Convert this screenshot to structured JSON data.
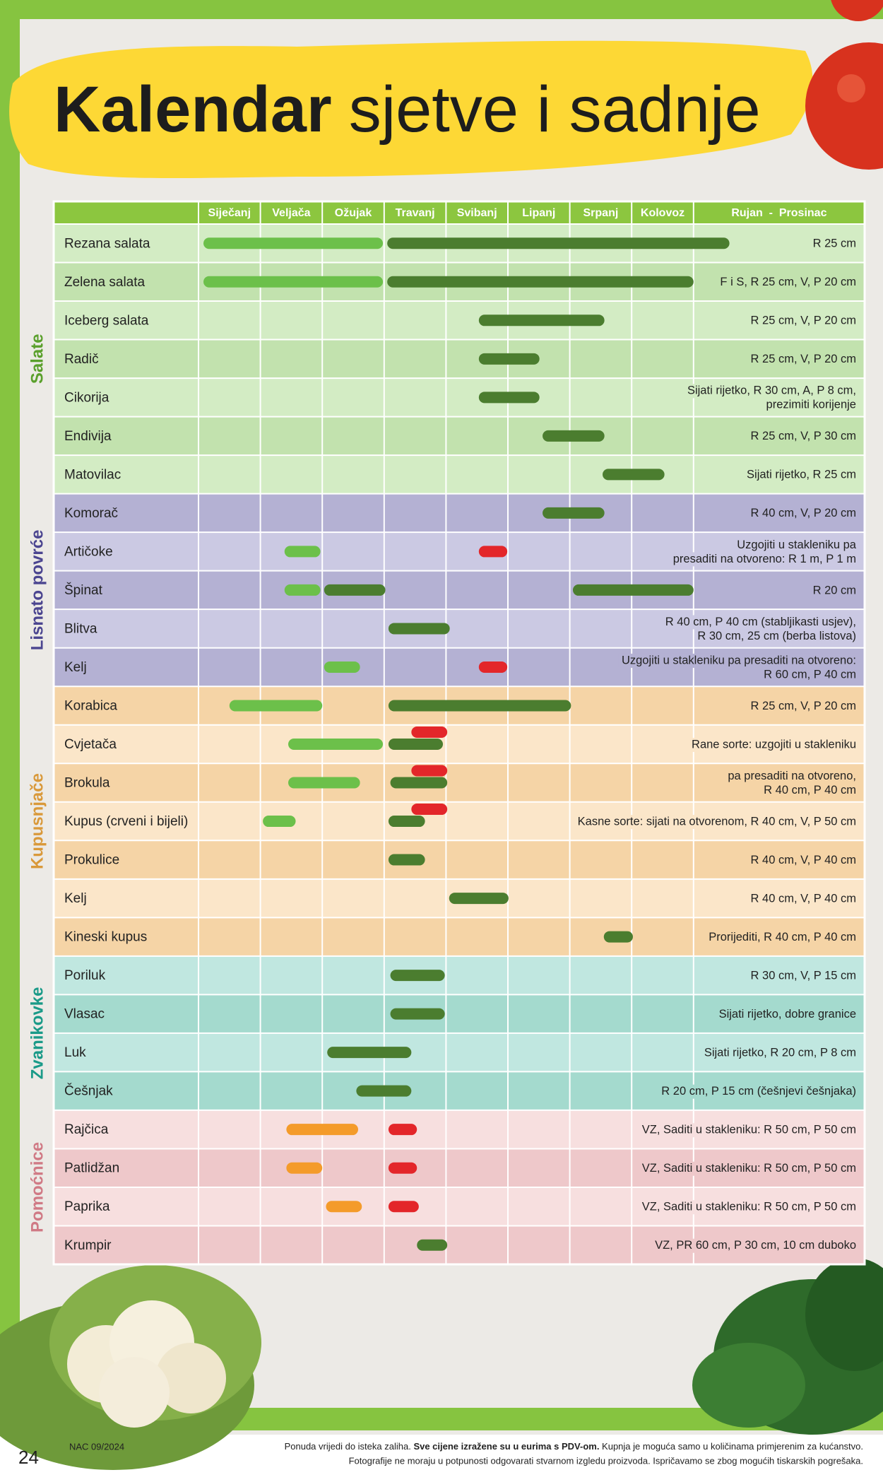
{
  "header": {
    "title_bold": "Kalendar",
    "title_rest": "sjetve i sadnje"
  },
  "months": [
    "Siječanj",
    "Veljača",
    "Ožujak",
    "Travanj",
    "Svibanj",
    "Lipanj",
    "Srpanj",
    "Kolovoz"
  ],
  "notes_header": "Rujan  -  Prosinac",
  "groups": [
    {
      "name": "Salate",
      "color": "#5aa02c",
      "bg": [
        "#d3ecc4",
        "#c2e2ae"
      ],
      "rows": [
        {
          "name": "Rezana salata",
          "note": [
            "R 25 cm"
          ],
          "bars": [
            {
              "start": 0.08,
              "end": 2.98,
              "color": "#6cc04a"
            },
            {
              "start": 3.05,
              "end": 8.58,
              "color": "#4b7d2f"
            }
          ]
        },
        {
          "name": "Zelena salata",
          "note": [
            "F i S, R 25 cm, V, P 20 cm"
          ],
          "bars": [
            {
              "start": 0.08,
              "end": 2.98,
              "color": "#6cc04a"
            },
            {
              "start": 3.05,
              "end": 8.0,
              "color": "#4b7d2f"
            }
          ]
        },
        {
          "name": "Iceberg salata",
          "note": [
            "R 25 cm, V, P 20 cm"
          ],
          "bars": [
            {
              "start": 4.53,
              "end": 6.56,
              "color": "#4b7d2f"
            }
          ]
        },
        {
          "name": "Radič",
          "note": [
            "R 25 cm, V, P 20 cm"
          ],
          "bars": [
            {
              "start": 4.53,
              "end": 5.51,
              "color": "#4b7d2f"
            }
          ]
        },
        {
          "name": "Cikorija",
          "note": [
            "Sijati rijetko, R 30 cm, A, P 8 cm,",
            "prezimiti korijenje"
          ],
          "bars": [
            {
              "start": 4.53,
              "end": 5.51,
              "color": "#4b7d2f"
            }
          ]
        },
        {
          "name": "Endivija",
          "note": [
            "R 25 cm, V, P 30 cm"
          ],
          "bars": [
            {
              "start": 5.56,
              "end": 6.56,
              "color": "#4b7d2f"
            }
          ]
        },
        {
          "name": "Matovilac",
          "note": [
            "Sijati rijetko, R 25 cm"
          ],
          "bars": [
            {
              "start": 6.53,
              "end": 7.53,
              "color": "#4b7d2f"
            }
          ]
        }
      ]
    },
    {
      "name": "Lisnato povrće",
      "color": "#4b4590",
      "bg": [
        "#b4b1d3",
        "#cbc9e3"
      ],
      "rows": [
        {
          "name": "Komorač",
          "note": [
            "R 40 cm, V, P 20 cm"
          ],
          "bars": [
            {
              "start": 5.56,
              "end": 6.56,
              "color": "#4b7d2f"
            }
          ]
        },
        {
          "name": "Artičoke",
          "note": [
            "Uzgojiti u stakleniku pa",
            "presaditi na otvoreno: R 1 m, P 1 m"
          ],
          "bars": [
            {
              "start": 1.39,
              "end": 1.97,
              "color": "#6cc04a"
            },
            {
              "start": 4.53,
              "end": 4.99,
              "color": "#e3262a"
            }
          ]
        },
        {
          "name": "Špinat",
          "note": [
            "R 20 cm"
          ],
          "bars": [
            {
              "start": 1.39,
              "end": 1.97,
              "color": "#6cc04a"
            },
            {
              "start": 2.03,
              "end": 3.02,
              "color": "#4b7d2f"
            },
            {
              "start": 6.05,
              "end": 8.0,
              "color": "#4b7d2f"
            }
          ]
        },
        {
          "name": "Blitva",
          "note": [
            "R 40 cm, P 40 cm (stabljikasti usjev),",
            "R 30 cm,  25 cm (berba listova)"
          ],
          "bars": [
            {
              "start": 3.07,
              "end": 4.06,
              "color": "#4b7d2f"
            }
          ]
        },
        {
          "name": "Kelj",
          "note": [
            "Uzgojiti u stakleniku pa presaditi na otvoreno:",
            "R 60 cm, P 40 cm"
          ],
          "bars": [
            {
              "start": 2.03,
              "end": 2.61,
              "color": "#6cc04a"
            },
            {
              "start": 4.53,
              "end": 4.99,
              "color": "#e3262a"
            }
          ]
        }
      ]
    },
    {
      "name": "Kupusnjače",
      "color": "#d9993a",
      "bg": [
        "#f5d4a6",
        "#fbe6c9"
      ],
      "rows": [
        {
          "name": "Korabica",
          "note": [
            "R 25 cm, V, P 20 cm"
          ],
          "bars": [
            {
              "start": 0.5,
              "end": 2.0,
              "color": "#6cc04a"
            },
            {
              "start": 3.07,
              "end": 6.02,
              "color": "#4b7d2f"
            }
          ]
        },
        {
          "name": "Cvjetača",
          "note": [
            "Rane sorte: uzgojiti u stakleniku"
          ],
          "bars": [
            {
              "start": 1.45,
              "end": 2.98,
              "color": "#6cc04a"
            },
            {
              "start": 3.07,
              "end": 3.95,
              "color": "#4b7d2f"
            },
            {
              "start": 3.44,
              "end": 4.02,
              "color": "#e3262a"
            }
          ]
        },
        {
          "name": "Brokula",
          "note": [
            "pa presaditi na otvoreno,",
            "R 40 cm, P 40 cm"
          ],
          "bars": [
            {
              "start": 1.45,
              "end": 2.61,
              "color": "#6cc04a"
            },
            {
              "start": 3.1,
              "end": 4.02,
              "color": "#4b7d2f"
            },
            {
              "start": 3.44,
              "end": 4.02,
              "color": "#e3262a"
            }
          ]
        },
        {
          "name": "Kupus (crveni i bijeli)",
          "note": [
            "Kasne sorte: sijati na otvorenom, R 40 cm, V, P 50 cm"
          ],
          "bars": [
            {
              "start": 1.04,
              "end": 1.57,
              "color": "#6cc04a"
            },
            {
              "start": 3.07,
              "end": 3.66,
              "color": "#4b7d2f"
            },
            {
              "start": 3.44,
              "end": 4.02,
              "color": "#e3262a"
            }
          ]
        },
        {
          "name": "Prokulice",
          "note": [
            "R 40 cm, V, P 40 cm"
          ],
          "bars": [
            {
              "start": 3.07,
              "end": 3.66,
              "color": "#4b7d2f"
            }
          ]
        },
        {
          "name": "Kelj",
          "note": [
            "R 40 cm, V, P 40 cm"
          ],
          "bars": [
            {
              "start": 4.05,
              "end": 5.01,
              "color": "#4b7d2f"
            }
          ]
        },
        {
          "name": "Kineski kupus",
          "note": [
            "Prorijediti, R 40 cm, P 40 cm"
          ],
          "bars": [
            {
              "start": 6.55,
              "end": 7.02,
              "color": "#4b7d2f"
            }
          ]
        }
      ]
    },
    {
      "name": "Zvanikovke",
      "color": "#1a9a88",
      "bg": [
        "#c0e7e0",
        "#a4dace"
      ],
      "rows": [
        {
          "name": "Poriluk",
          "note": [
            "R 30 cm, V, P 15 cm"
          ],
          "bars": [
            {
              "start": 3.1,
              "end": 3.98,
              "color": "#4b7d2f"
            }
          ]
        },
        {
          "name": "Vlasac",
          "note": [
            "Sijati rijetko, dobre granice"
          ],
          "bars": [
            {
              "start": 3.1,
              "end": 3.98,
              "color": "#4b7d2f"
            }
          ]
        },
        {
          "name": "Luk",
          "note": [
            "Sijati rijetko, R 20 cm, P 8 cm"
          ],
          "bars": [
            {
              "start": 2.08,
              "end": 3.44,
              "color": "#4b7d2f"
            }
          ]
        },
        {
          "name": "Češnjak",
          "note": [
            "R 20 cm, P 15 cm (češnjevi češnjaka)"
          ],
          "bars": [
            {
              "start": 2.55,
              "end": 3.44,
              "color": "#4b7d2f"
            }
          ]
        }
      ]
    },
    {
      "name": "Pomoćnice",
      "color": "#d07a85",
      "bg": [
        "#f7dfdf",
        "#eec8ca"
      ],
      "rows": [
        {
          "name": "Rajčica",
          "note": [
            "VZ, Saditi u stakleniku: R 50 cm, P 50 cm"
          ],
          "bars": [
            {
              "start": 1.42,
              "end": 2.58,
              "color": "#f49b2a"
            },
            {
              "start": 3.07,
              "end": 3.53,
              "color": "#e3262a"
            }
          ]
        },
        {
          "name": "Patlidžan",
          "note": [
            "VZ, Saditi u stakleniku: R 50 cm, P 50 cm"
          ],
          "bars": [
            {
              "start": 1.42,
              "end": 2.0,
              "color": "#f49b2a"
            },
            {
              "start": 3.07,
              "end": 3.53,
              "color": "#e3262a"
            }
          ]
        },
        {
          "name": "Paprika",
          "note": [
            "VZ, Saditi u stakleniku: R 50 cm, P 50 cm"
          ],
          "bars": [
            {
              "start": 2.06,
              "end": 2.64,
              "color": "#f49b2a"
            },
            {
              "start": 3.07,
              "end": 3.56,
              "color": "#e3262a"
            }
          ]
        },
        {
          "name": "Krumpir",
          "note": [
            "VZ, PR 60 cm, P 30 cm, 10 cm duboko"
          ],
          "bars": [
            {
              "start": 3.53,
              "end": 4.02,
              "color": "#4b7d2f"
            }
          ]
        }
      ]
    }
  ],
  "footer": {
    "page": "24",
    "code": "NAC 09/2024",
    "line1_a": "Ponuda vrijedi do isteka zaliha. ",
    "line1_bold": "Sve cijene izražene su u eurima s PDV-om.",
    "line1_b": " Kupnja je moguća samo u količinama primjerenim za kućanstvo.",
    "line2": "Fotografije ne moraju u potpunosti odgovarati stvarnom izgledu proizvoda. Ispričavamo se zbog mogućih tiskarskih pogrešaka."
  }
}
